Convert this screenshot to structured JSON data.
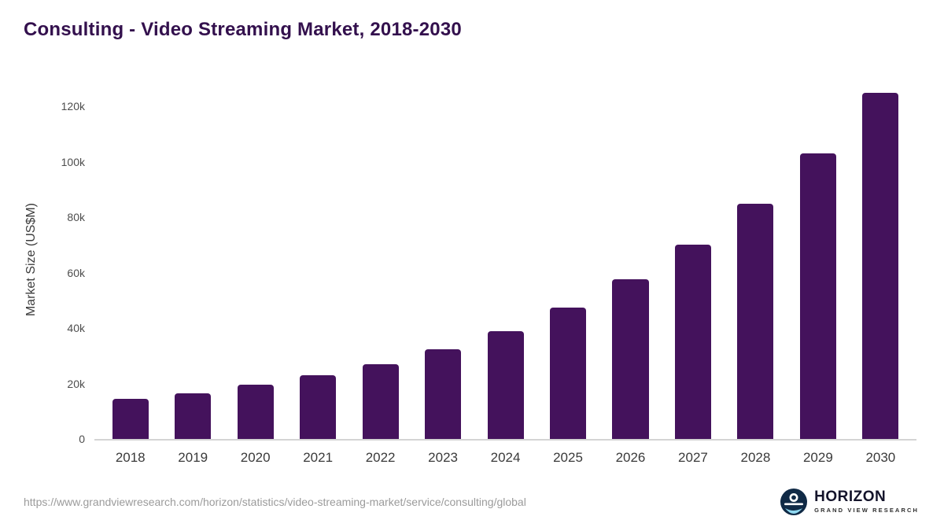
{
  "title": "Consulting - Video Streaming Market, 2018-2030",
  "chart_data": {
    "type": "bar",
    "title": "Consulting - Video Streaming Market, 2018-2030",
    "categories": [
      "2018",
      "2019",
      "2020",
      "2021",
      "2022",
      "2023",
      "2024",
      "2025",
      "2026",
      "2027",
      "2028",
      "2029",
      "2030"
    ],
    "values": [
      14500,
      16500,
      19500,
      23000,
      27000,
      32500,
      39000,
      47500,
      57500,
      70000,
      85000,
      103000,
      125000
    ],
    "xlabel": "",
    "ylabel": "Market Size (US$M)",
    "ylim": [
      0,
      130000
    ],
    "yticks": [
      0,
      20000,
      40000,
      60000,
      80000,
      100000,
      120000
    ],
    "ytick_labels": [
      "0",
      "20k",
      "40k",
      "60k",
      "80k",
      "100k",
      "120k"
    ],
    "bar_color": "#44125c",
    "grid": false,
    "legend": "none"
  },
  "colors": {
    "title": "#33104d",
    "bar": "#44125c",
    "axis_line": "#d4d4d4",
    "logo_circle": "#102a46",
    "logo_wave": "#8fd8f0"
  },
  "footer": {
    "source_url": "https://www.grandviewresearch.com/horizon/statistics/video-streaming-market/service/consulting/global",
    "logo_title": "HORIZON",
    "logo_subtitle": "GRAND VIEW RESEARCH"
  }
}
